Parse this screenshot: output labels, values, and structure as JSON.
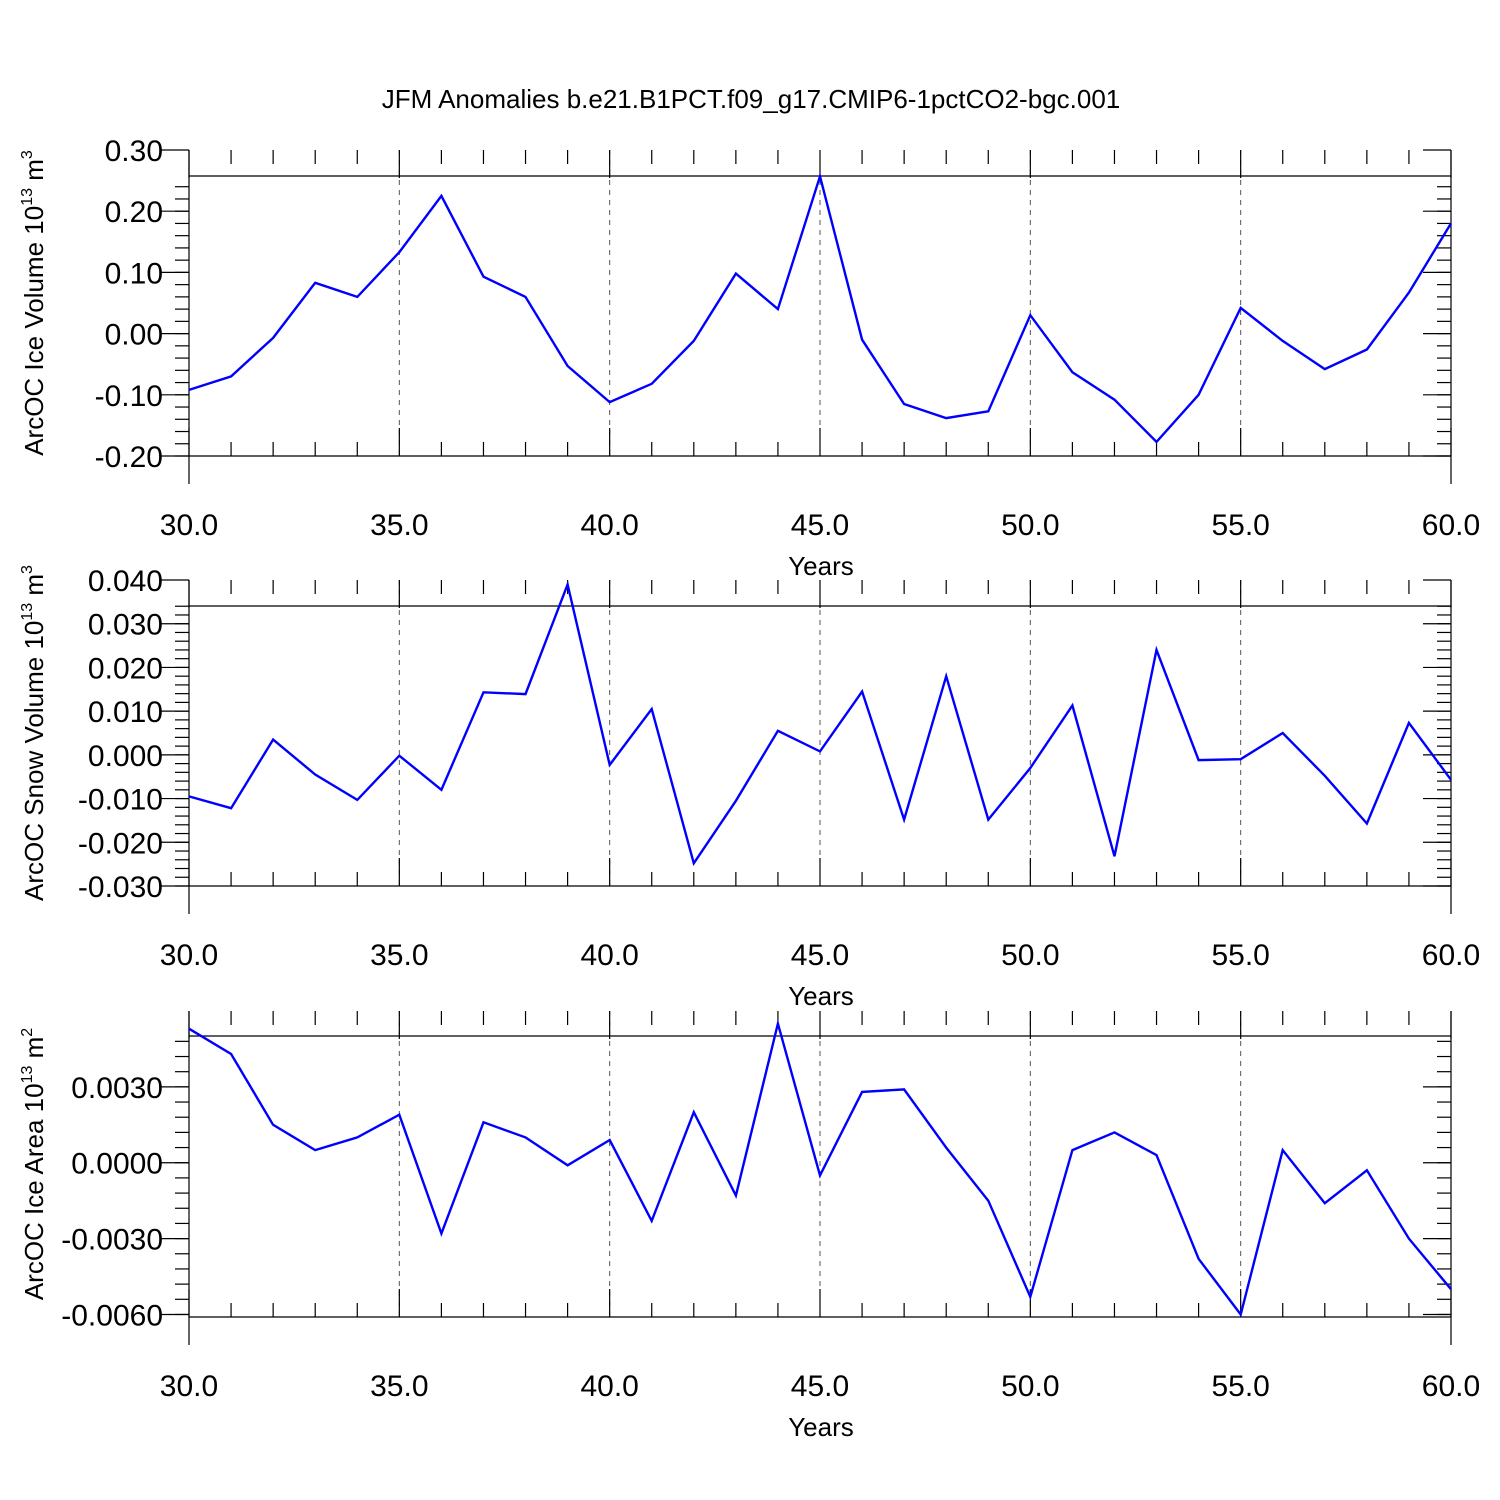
{
  "title": "JFM Anomalies b.e21.B1PCT.f09_g17.CMIP6-1pctCO2-bgc.001",
  "chart_data": [
    {
      "type": "line",
      "xlabel": "Years",
      "ylabel": "ArcOC Ice Volume 10",
      "ylabel_exp": "13",
      "ylabel_unit": "m",
      "ylabel_unit_exp": "3",
      "xlim": [
        30,
        60
      ],
      "ylim": [
        -0.2,
        0.3
      ],
      "grid": "dashed vertical at major x ticks",
      "line_color": "#0000ff",
      "x_ticks": [
        30,
        35,
        40,
        45,
        50,
        55,
        60
      ],
      "x_tick_labels": [
        "30.0",
        "35.0",
        "40.0",
        "45.0",
        "50.0",
        "55.0",
        "60.0"
      ],
      "y_ticks": [
        0.3,
        0.2,
        0.1,
        0.0,
        -0.1,
        -0.2
      ],
      "y_tick_labels": [
        "0.30",
        "0.20",
        "0.10",
        "0.00",
        "-0.10",
        "-0.20"
      ],
      "x": [
        30,
        31,
        32,
        33,
        34,
        35,
        36,
        37,
        38,
        39,
        40,
        41,
        42,
        43,
        44,
        45,
        46,
        47,
        48,
        49,
        50,
        51,
        52,
        53,
        54,
        55,
        56,
        57,
        58,
        59,
        60
      ],
      "values": [
        -0.092,
        -0.07,
        -0.007,
        0.083,
        0.06,
        0.133,
        0.225,
        0.093,
        0.06,
        -0.053,
        -0.112,
        -0.082,
        -0.012,
        0.098,
        0.04,
        0.257,
        -0.01,
        -0.115,
        -0.138,
        -0.127,
        0.03,
        -0.063,
        -0.108,
        -0.177,
        -0.1,
        0.042,
        -0.012,
        -0.058,
        -0.026,
        0.067,
        0.18
      ]
    },
    {
      "type": "line",
      "xlabel": "Years",
      "ylabel": "ArcOC Snow Volume 10",
      "ylabel_exp": "13",
      "ylabel_unit": "m",
      "ylabel_unit_exp": "3",
      "xlim": [
        30,
        60
      ],
      "ylim": [
        -0.03,
        0.04
      ],
      "grid": "dashed vertical at major x ticks",
      "line_color": "#0000ff",
      "x_ticks": [
        30,
        35,
        40,
        45,
        50,
        55,
        60
      ],
      "x_tick_labels": [
        "30.0",
        "35.0",
        "40.0",
        "45.0",
        "50.0",
        "55.0",
        "60.0"
      ],
      "y_ticks": [
        0.04,
        0.03,
        0.02,
        0.01,
        0.0,
        -0.01,
        -0.02,
        -0.03
      ],
      "y_tick_labels": [
        "0.040",
        "0.030",
        "0.020",
        "0.010",
        "0.000",
        "-0.010",
        "-0.020",
        "-0.030"
      ],
      "x": [
        30,
        31,
        32,
        33,
        34,
        35,
        36,
        37,
        38,
        39,
        40,
        41,
        42,
        43,
        44,
        45,
        46,
        47,
        48,
        49,
        50,
        51,
        52,
        53,
        54,
        55,
        56,
        57,
        58,
        59,
        60
      ],
      "values": [
        -0.0095,
        -0.0122,
        0.0035,
        -0.0045,
        -0.0103,
        -0.0002,
        -0.008,
        0.0143,
        0.0139,
        0.039,
        -0.0023,
        0.0105,
        -0.0248,
        -0.0105,
        0.0055,
        0.0008,
        0.0145,
        -0.0148,
        0.018,
        -0.0148,
        -0.003,
        0.0113,
        -0.0232,
        0.024,
        -0.0012,
        -0.001,
        0.005,
        -0.0048,
        -0.0157,
        0.0073,
        -0.0057
      ]
    },
    {
      "type": "line",
      "xlabel": "Years",
      "ylabel": "ArcOC Ice Area 10",
      "ylabel_exp": "13",
      "ylabel_unit": "m",
      "ylabel_unit_exp": "2",
      "xlim": [
        30,
        60
      ],
      "ylim": [
        -0.0061,
        0.006
      ],
      "grid": "dashed vertical at major x ticks",
      "line_color": "#0000ff",
      "x_ticks": [
        30,
        35,
        40,
        45,
        50,
        55,
        60
      ],
      "x_tick_labels": [
        "30.0",
        "35.0",
        "40.0",
        "45.0",
        "50.0",
        "55.0",
        "60.0"
      ],
      "y_ticks": [
        0.003,
        0.0,
        -0.003,
        -0.006
      ],
      "y_tick_labels": [
        "0.0030",
        "0.0000",
        "-0.0030",
        "-0.0060"
      ],
      "x": [
        30,
        31,
        32,
        33,
        34,
        35,
        36,
        37,
        38,
        39,
        40,
        41,
        42,
        43,
        44,
        45,
        46,
        47,
        48,
        49,
        50,
        51,
        52,
        53,
        54,
        55,
        56,
        57,
        58,
        59,
        60
      ],
      "values": [
        0.0053,
        0.0043,
        0.0015,
        0.0005,
        0.001,
        0.0019,
        -0.0028,
        0.0016,
        0.001,
        -0.0001,
        0.0009,
        -0.0023,
        0.002,
        -0.0013,
        0.0055,
        -0.0005,
        0.0028,
        0.0029,
        0.0006,
        -0.0015,
        -0.0053,
        0.0005,
        0.0012,
        0.0003,
        -0.0038,
        -0.006,
        0.0005,
        -0.0016,
        -0.0003,
        -0.003,
        -0.005
      ]
    }
  ]
}
